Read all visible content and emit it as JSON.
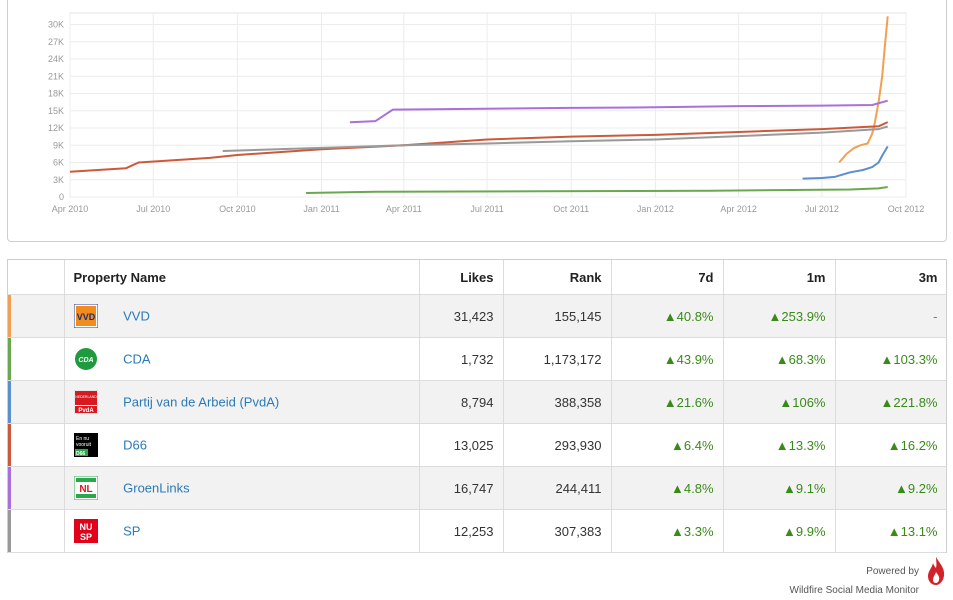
{
  "chart_data": {
    "type": "line",
    "xlim": [
      "2010-04-01",
      "2012-10-01"
    ],
    "ylim": [
      0,
      32000
    ],
    "x_ticks": [
      "Apr 2010",
      "Jul 2010",
      "Oct 2010",
      "Jan 2011",
      "Apr 2011",
      "Jul 2011",
      "Oct 2011",
      "Jan 2012",
      "Apr 2012",
      "Jul 2012",
      "Oct 2012"
    ],
    "y_ticks": [
      "0",
      "3K",
      "6K",
      "9K",
      "12K",
      "15K",
      "18K",
      "21K",
      "24K",
      "27K",
      "30K"
    ],
    "y_tick_values": [
      0,
      3000,
      6000,
      9000,
      12000,
      15000,
      18000,
      21000,
      24000,
      27000,
      30000
    ],
    "grid": true,
    "series": [
      {
        "name": "VVD",
        "color": "#f0a050",
        "x": [
          "2012-07-20",
          "2012-07-28",
          "2012-08-05",
          "2012-08-12",
          "2012-08-20",
          "2012-08-25",
          "2012-08-28",
          "2012-09-01",
          "2012-09-05",
          "2012-09-08",
          "2012-09-11"
        ],
        "y": [
          6000,
          7500,
          8500,
          9000,
          9300,
          11000,
          13000,
          16500,
          21000,
          26500,
          31423
        ]
      },
      {
        "name": "CDA",
        "color": "#6aa84f",
        "x": [
          "2010-12-15",
          "2011-03-01",
          "2011-09-01",
          "2012-03-01",
          "2012-08-01",
          "2012-09-01",
          "2012-09-11"
        ],
        "y": [
          700,
          900,
          1000,
          1100,
          1300,
          1500,
          1732
        ]
      },
      {
        "name": "Partij van de Arbeid (PvdA)",
        "color": "#5b8fcf",
        "x": [
          "2012-06-10",
          "2012-07-01",
          "2012-07-15",
          "2012-08-01",
          "2012-08-15",
          "2012-08-25",
          "2012-09-01",
          "2012-09-05",
          "2012-09-11"
        ],
        "y": [
          3200,
          3300,
          3500,
          4300,
          4700,
          5200,
          6000,
          7200,
          8794
        ]
      },
      {
        "name": "D66",
        "color": "#cc5a3a",
        "x": [
          "2010-04-01",
          "2010-06-01",
          "2010-06-15",
          "2010-09-01",
          "2010-10-01",
          "2011-01-01",
          "2011-04-01",
          "2011-07-01",
          "2011-10-01",
          "2012-01-01",
          "2012-04-01",
          "2012-07-01",
          "2012-09-01",
          "2012-09-11"
        ],
        "y": [
          4400,
          5000,
          6000,
          6800,
          7300,
          8300,
          9000,
          10000,
          10500,
          10800,
          11300,
          11800,
          12300,
          13025
        ]
      },
      {
        "name": "GroenLinks",
        "color": "#a970d9",
        "x": [
          "2011-02-01",
          "2011-03-01",
          "2011-03-20",
          "2011-06-01",
          "2011-10-01",
          "2012-01-01",
          "2012-04-01",
          "2012-07-01",
          "2012-08-25",
          "2012-09-11"
        ],
        "y": [
          13000,
          13200,
          15200,
          15300,
          15500,
          15600,
          15800,
          15900,
          16000,
          16747
        ]
      },
      {
        "name": "SP",
        "color": "#999999",
        "x": [
          "2010-09-15",
          "2010-12-01",
          "2011-02-01",
          "2011-04-01",
          "2011-07-01",
          "2011-10-01",
          "2012-01-01",
          "2012-04-01",
          "2012-07-01",
          "2012-09-01",
          "2012-09-11"
        ],
        "y": [
          8000,
          8400,
          8700,
          9000,
          9300,
          9700,
          10000,
          10600,
          11200,
          11800,
          12253
        ]
      }
    ]
  },
  "table": {
    "headers": {
      "name": "Property Name",
      "likes": "Likes",
      "rank": "Rank",
      "d7": "7d",
      "m1": "1m",
      "m3": "3m"
    },
    "rows": [
      {
        "name": "VVD",
        "color": "#f0a050",
        "logo": "vvd-logo",
        "likes": "31,423",
        "rank": "155,145",
        "d7": "▲40.8%",
        "m1": "▲253.9%",
        "m3": "-"
      },
      {
        "name": "CDA",
        "color": "#6aa84f",
        "logo": "cda-logo",
        "likes": "1,732",
        "rank": "1,173,172",
        "d7": "▲43.9%",
        "m1": "▲68.3%",
        "m3": "▲103.3%"
      },
      {
        "name": "Partij van de Arbeid (PvdA)",
        "color": "#5b8fcf",
        "logo": "pvda-logo",
        "likes": "8,794",
        "rank": "388,358",
        "d7": "▲21.6%",
        "m1": "▲106%",
        "m3": "▲221.8%"
      },
      {
        "name": "D66",
        "color": "#cc5a3a",
        "logo": "d66-logo",
        "likes": "13,025",
        "rank": "293,930",
        "d7": "▲6.4%",
        "m1": "▲13.3%",
        "m3": "▲16.2%"
      },
      {
        "name": "GroenLinks",
        "color": "#a970d9",
        "logo": "groenlinks-logo",
        "likes": "16,747",
        "rank": "244,411",
        "d7": "▲4.8%",
        "m1": "▲9.1%",
        "m3": "▲9.2%"
      },
      {
        "name": "SP",
        "color": "#999999",
        "logo": "sp-logo",
        "likes": "12,253",
        "rank": "307,383",
        "d7": "▲3.3%",
        "m1": "▲9.9%",
        "m3": "▲13.1%"
      }
    ]
  },
  "footer": {
    "powered_by": "Powered by",
    "product": "Wildfire Social Media Monitor",
    "icon": "flame-icon"
  },
  "logos": {
    "vvd": "VVD",
    "cda": "CDA",
    "pvda_top": "NEDERLAND",
    "pvda_bottom": "PvdA",
    "d66_top": "En nu",
    "d66_mid": "vooruit",
    "d66_bottom": "D66",
    "groenlinks": "NL",
    "sp_top": "NU",
    "sp_bottom": "SP"
  }
}
